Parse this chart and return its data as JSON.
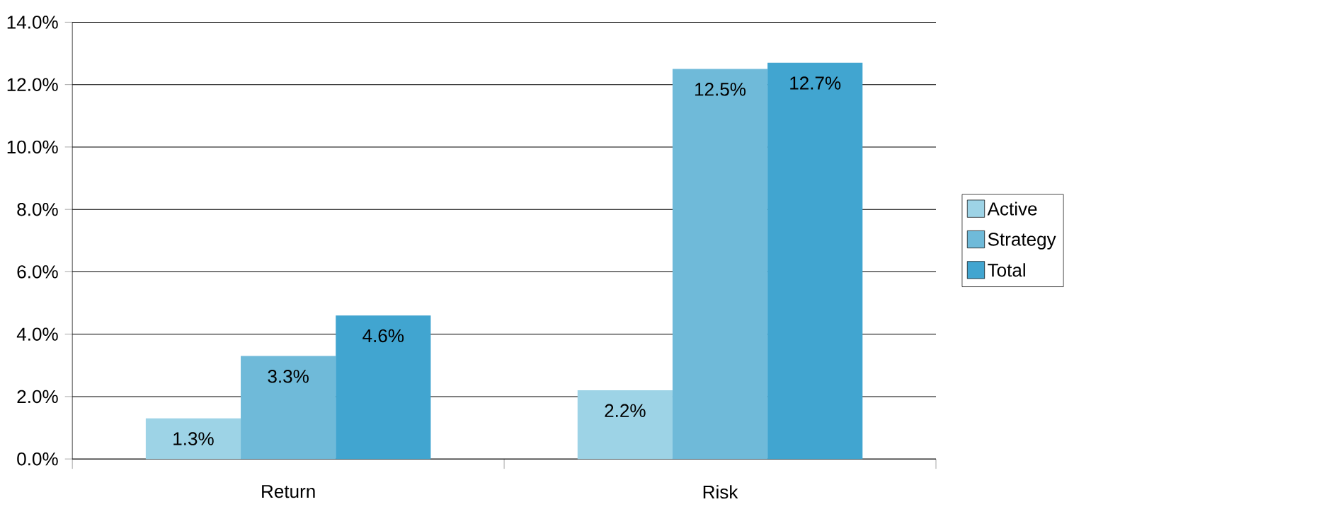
{
  "chart_data": {
    "type": "bar",
    "categories": [
      "Return",
      "Risk"
    ],
    "series": [
      {
        "name": "Active",
        "color": "#9dd3e6",
        "values": [
          1.3,
          2.2
        ],
        "value_labels": [
          "1.3%",
          "2.2%"
        ]
      },
      {
        "name": "Strategy",
        "color": "#6fbad9",
        "values": [
          3.3,
          12.5
        ],
        "value_labels": [
          "3.3%",
          "12.5%"
        ]
      },
      {
        "name": "Total",
        "color": "#41a5d0",
        "values": [
          4.6,
          12.7
        ],
        "value_labels": [
          "4.6%",
          "12.7%"
        ]
      }
    ],
    "ylim": [
      0,
      14
    ],
    "yticks": [
      {
        "value": 0,
        "label": "0.0%"
      },
      {
        "value": 2,
        "label": "2.0%"
      },
      {
        "value": 4,
        "label": "4.0%"
      },
      {
        "value": 6,
        "label": "6.0%"
      },
      {
        "value": 8,
        "label": "8.0%"
      },
      {
        "value": 10,
        "label": "10.0%"
      },
      {
        "value": 12,
        "label": "12.0%"
      },
      {
        "value": 14,
        "label": "14.0%"
      }
    ],
    "grid": "y",
    "legend": "right"
  }
}
